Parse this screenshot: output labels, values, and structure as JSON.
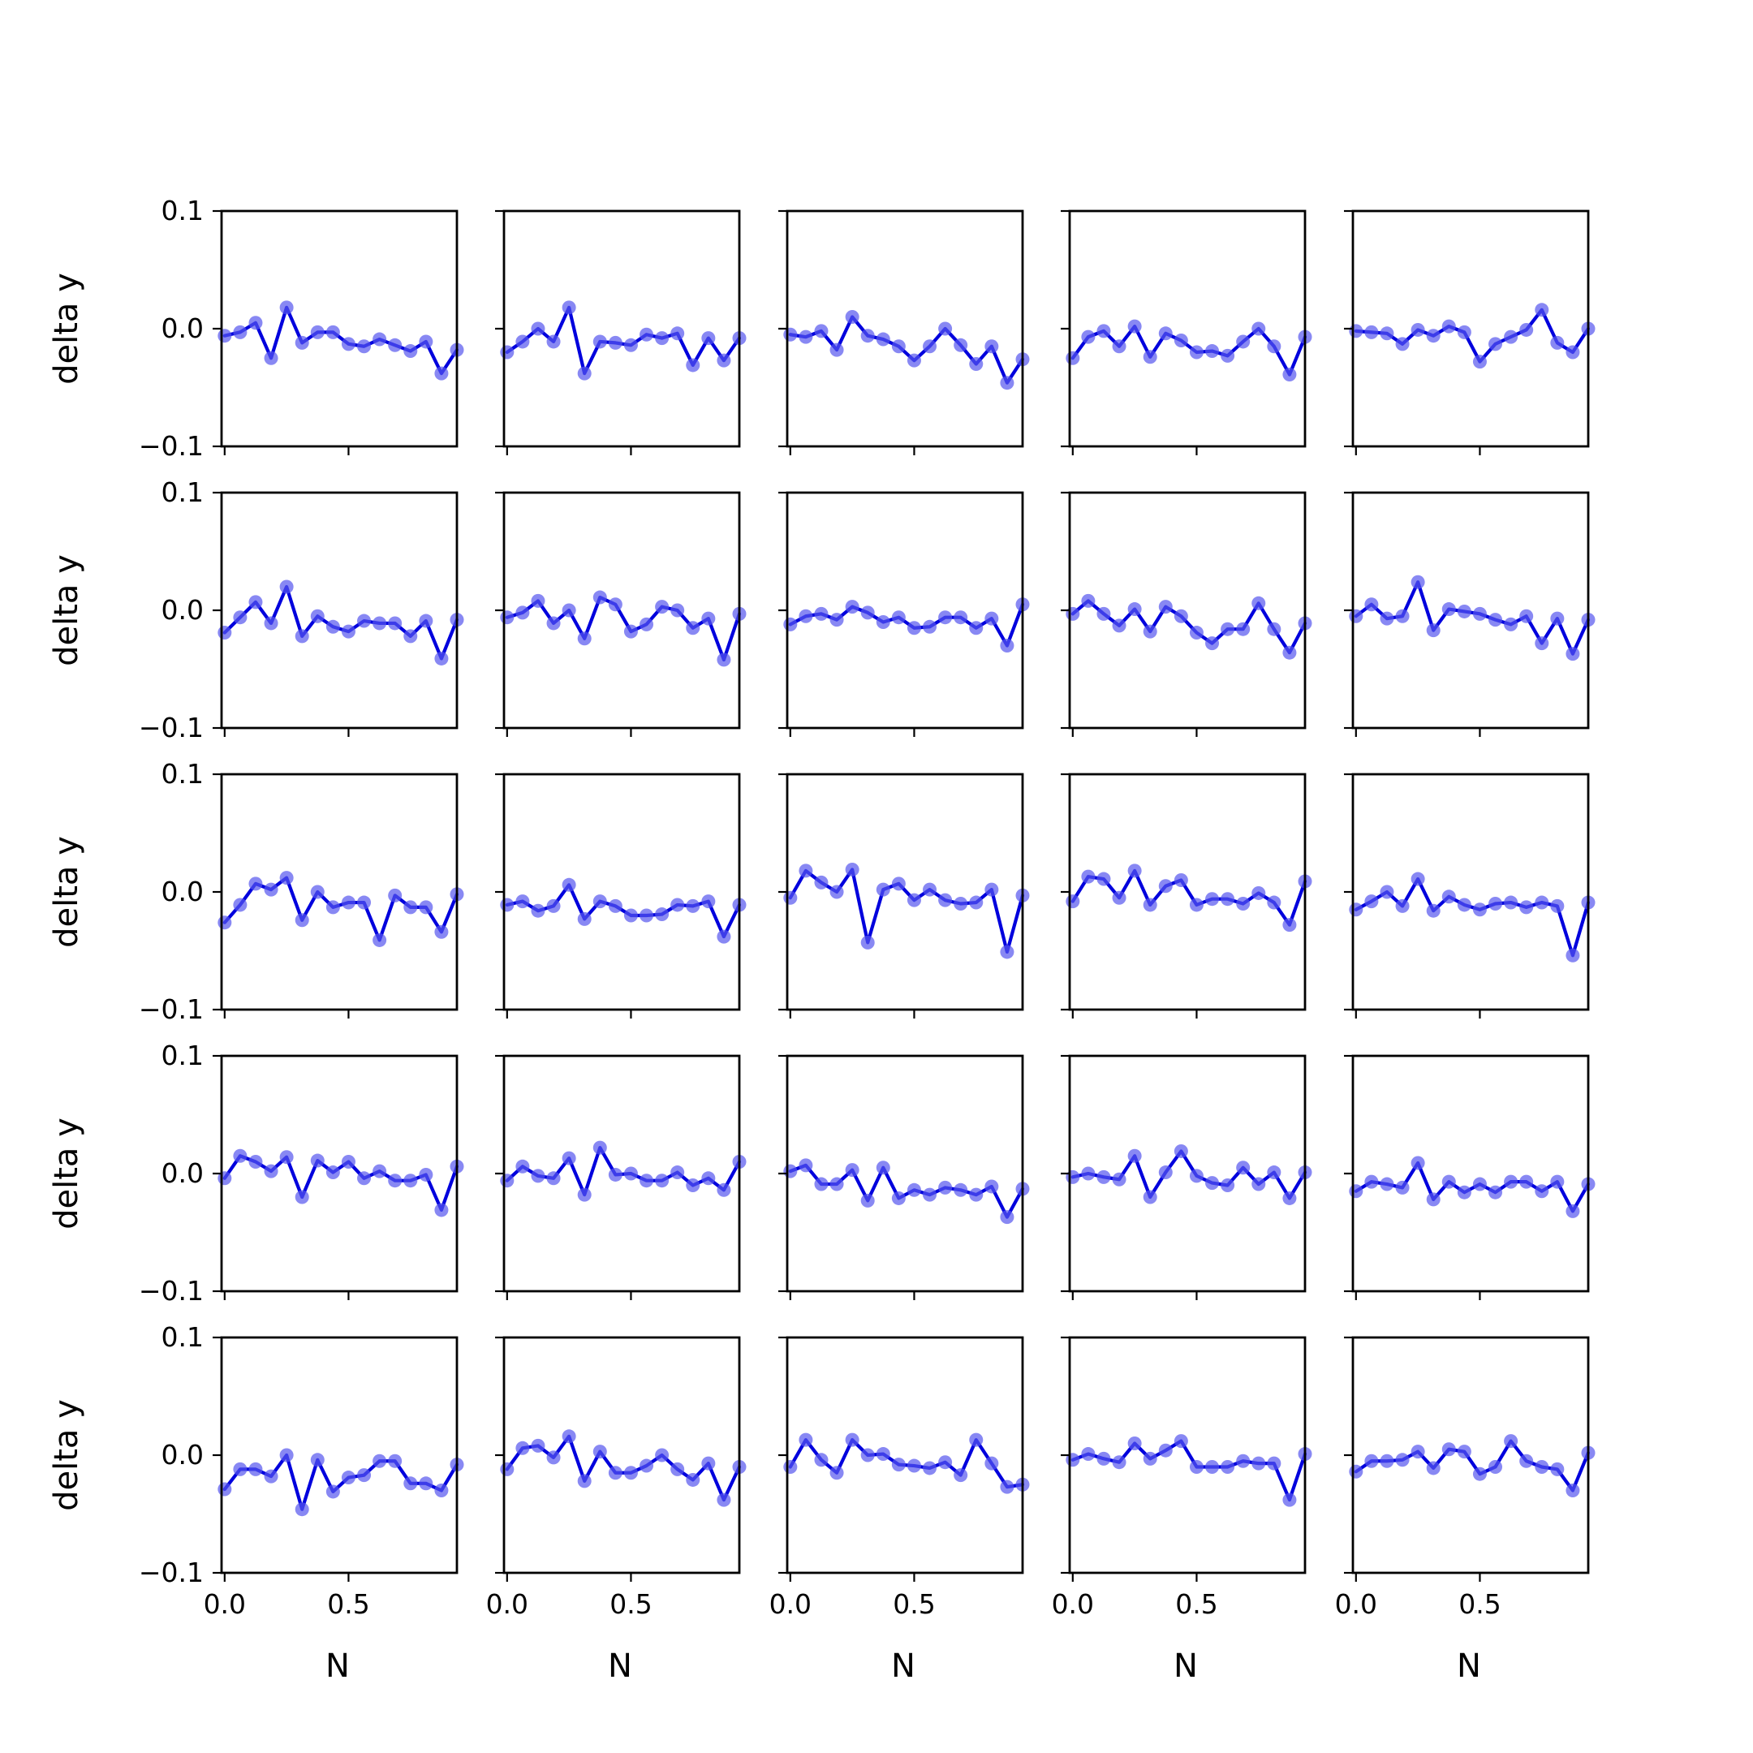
{
  "figure": {
    "rows": 5,
    "cols": 5,
    "line_color": "#0000dd",
    "marker_color": "#5555ee",
    "ylabel": "delta y",
    "xlabel": "N"
  },
  "chart_data": {
    "type": "line",
    "layout": "5x5 grid of subplots, shared x and y axes",
    "xlabel": "N",
    "ylabel": "delta y",
    "xlim": [
      -0.0125,
      0.9375
    ],
    "ylim": [
      -0.1,
      0.1
    ],
    "xticks": [
      0.0,
      0.5
    ],
    "xtick_labels": [
      "0.0",
      "0.5"
    ],
    "yticks": [
      -0.1,
      0.0,
      0.1
    ],
    "ytick_labels": [
      "−0.1",
      "0.0",
      "0.1"
    ],
    "grid": false,
    "x": [
      0.0,
      0.0625,
      0.125,
      0.1875,
      0.25,
      0.3125,
      0.375,
      0.4375,
      0.5,
      0.5625,
      0.625,
      0.6875,
      0.75,
      0.8125,
      0.875,
      0.9375
    ],
    "panels": [
      {
        "values": [
          -0.006,
          -0.003,
          0.005,
          -0.025,
          0.018,
          -0.012,
          -0.003,
          -0.003,
          -0.013,
          -0.015,
          -0.009,
          -0.014,
          -0.019,
          -0.011,
          -0.038,
          -0.018
        ]
      },
      {
        "values": [
          -0.02,
          -0.011,
          0.0,
          -0.011,
          0.018,
          -0.038,
          -0.011,
          -0.012,
          -0.014,
          -0.005,
          -0.008,
          -0.004,
          -0.031,
          -0.008,
          -0.027,
          -0.008
        ]
      },
      {
        "values": [
          -0.005,
          -0.007,
          -0.002,
          -0.018,
          0.01,
          -0.006,
          -0.009,
          -0.015,
          -0.027,
          -0.015,
          0.0,
          -0.014,
          -0.03,
          -0.015,
          -0.046,
          -0.026
        ]
      },
      {
        "values": [
          -0.025,
          -0.007,
          -0.002,
          -0.015,
          0.002,
          -0.024,
          -0.004,
          -0.01,
          -0.02,
          -0.019,
          -0.023,
          -0.011,
          0.0,
          -0.015,
          -0.039,
          -0.007
        ]
      },
      {
        "values": [
          -0.002,
          -0.003,
          -0.004,
          -0.013,
          -0.001,
          -0.006,
          0.002,
          -0.003,
          -0.028,
          -0.013,
          -0.007,
          -0.001,
          0.016,
          -0.012,
          -0.02,
          0.0
        ]
      },
      {
        "values": [
          -0.019,
          -0.006,
          0.007,
          -0.011,
          0.02,
          -0.022,
          -0.005,
          -0.014,
          -0.018,
          -0.009,
          -0.011,
          -0.011,
          -0.022,
          -0.009,
          -0.041,
          -0.008
        ]
      },
      {
        "values": [
          -0.006,
          -0.002,
          0.008,
          -0.011,
          0.0,
          -0.024,
          0.011,
          0.005,
          -0.018,
          -0.012,
          0.003,
          0.0,
          -0.015,
          -0.007,
          -0.042,
          -0.003
        ]
      },
      {
        "values": [
          -0.012,
          -0.005,
          -0.003,
          -0.008,
          0.003,
          -0.002,
          -0.01,
          -0.006,
          -0.015,
          -0.014,
          -0.006,
          -0.006,
          -0.015,
          -0.007,
          -0.03,
          0.005
        ]
      },
      {
        "values": [
          -0.003,
          0.008,
          -0.003,
          -0.013,
          0.001,
          -0.018,
          0.003,
          -0.005,
          -0.019,
          -0.028,
          -0.016,
          -0.016,
          0.006,
          -0.016,
          -0.036,
          -0.011
        ]
      },
      {
        "values": [
          -0.005,
          0.005,
          -0.007,
          -0.005,
          0.024,
          -0.017,
          0.001,
          -0.001,
          -0.003,
          -0.008,
          -0.012,
          -0.005,
          -0.028,
          -0.007,
          -0.037,
          -0.008
        ]
      },
      {
        "values": [
          -0.026,
          -0.011,
          0.007,
          0.002,
          0.012,
          -0.024,
          0.0,
          -0.013,
          -0.009,
          -0.009,
          -0.041,
          -0.003,
          -0.013,
          -0.013,
          -0.034,
          -0.002
        ]
      },
      {
        "values": [
          -0.011,
          -0.008,
          -0.016,
          -0.012,
          0.006,
          -0.023,
          -0.008,
          -0.012,
          -0.02,
          -0.02,
          -0.019,
          -0.011,
          -0.012,
          -0.008,
          -0.038,
          -0.011
        ]
      },
      {
        "values": [
          -0.005,
          0.018,
          0.008,
          0.0,
          0.019,
          -0.043,
          0.002,
          0.007,
          -0.007,
          0.002,
          -0.007,
          -0.01,
          -0.009,
          0.002,
          -0.051,
          -0.003
        ]
      },
      {
        "values": [
          -0.008,
          0.013,
          0.011,
          -0.005,
          0.018,
          -0.011,
          0.005,
          0.01,
          -0.011,
          -0.006,
          -0.006,
          -0.01,
          -0.001,
          -0.009,
          -0.028,
          0.009
        ]
      },
      {
        "values": [
          -0.015,
          -0.008,
          0.0,
          -0.012,
          0.011,
          -0.016,
          -0.004,
          -0.011,
          -0.015,
          -0.01,
          -0.009,
          -0.013,
          -0.009,
          -0.012,
          -0.054,
          -0.009
        ]
      },
      {
        "values": [
          -0.004,
          0.015,
          0.01,
          0.002,
          0.014,
          -0.02,
          0.011,
          0.001,
          0.01,
          -0.004,
          0.002,
          -0.006,
          -0.006,
          -0.001,
          -0.031,
          0.006
        ]
      },
      {
        "values": [
          -0.006,
          0.006,
          -0.002,
          -0.004,
          0.013,
          -0.018,
          0.022,
          -0.001,
          0.0,
          -0.006,
          -0.006,
          0.001,
          -0.01,
          -0.004,
          -0.014,
          0.01
        ]
      },
      {
        "values": [
          0.002,
          0.007,
          -0.009,
          -0.009,
          0.003,
          -0.023,
          0.005,
          -0.021,
          -0.014,
          -0.018,
          -0.012,
          -0.014,
          -0.018,
          -0.011,
          -0.037,
          -0.013
        ]
      },
      {
        "values": [
          -0.003,
          0.0,
          -0.003,
          -0.005,
          0.015,
          -0.02,
          0.001,
          0.019,
          -0.002,
          -0.008,
          -0.01,
          0.005,
          -0.009,
          0.001,
          -0.021,
          0.001
        ]
      },
      {
        "values": [
          -0.015,
          -0.007,
          -0.009,
          -0.012,
          0.009,
          -0.022,
          -0.007,
          -0.016,
          -0.009,
          -0.016,
          -0.007,
          -0.007,
          -0.015,
          -0.007,
          -0.032,
          -0.009
        ]
      },
      {
        "values": [
          -0.029,
          -0.012,
          -0.012,
          -0.018,
          0.0,
          -0.046,
          -0.004,
          -0.031,
          -0.019,
          -0.017,
          -0.005,
          -0.005,
          -0.024,
          -0.024,
          -0.03,
          -0.008
        ]
      },
      {
        "values": [
          -0.012,
          0.006,
          0.008,
          -0.002,
          0.016,
          -0.022,
          0.003,
          -0.015,
          -0.015,
          -0.009,
          0.0,
          -0.012,
          -0.021,
          -0.007,
          -0.038,
          -0.01
        ]
      },
      {
        "values": [
          -0.01,
          0.013,
          -0.004,
          -0.015,
          0.013,
          0.0,
          0.001,
          -0.008,
          -0.009,
          -0.011,
          -0.006,
          -0.017,
          0.013,
          -0.007,
          -0.027,
          -0.025
        ]
      },
      {
        "values": [
          -0.004,
          0.001,
          -0.003,
          -0.006,
          0.01,
          -0.003,
          0.004,
          0.012,
          -0.01,
          -0.01,
          -0.01,
          -0.005,
          -0.007,
          -0.007,
          -0.038,
          0.001
        ]
      },
      {
        "values": [
          -0.014,
          -0.005,
          -0.005,
          -0.004,
          0.003,
          -0.011,
          0.005,
          0.003,
          -0.016,
          -0.01,
          0.012,
          -0.005,
          -0.01,
          -0.012,
          -0.03,
          0.002
        ]
      }
    ]
  }
}
